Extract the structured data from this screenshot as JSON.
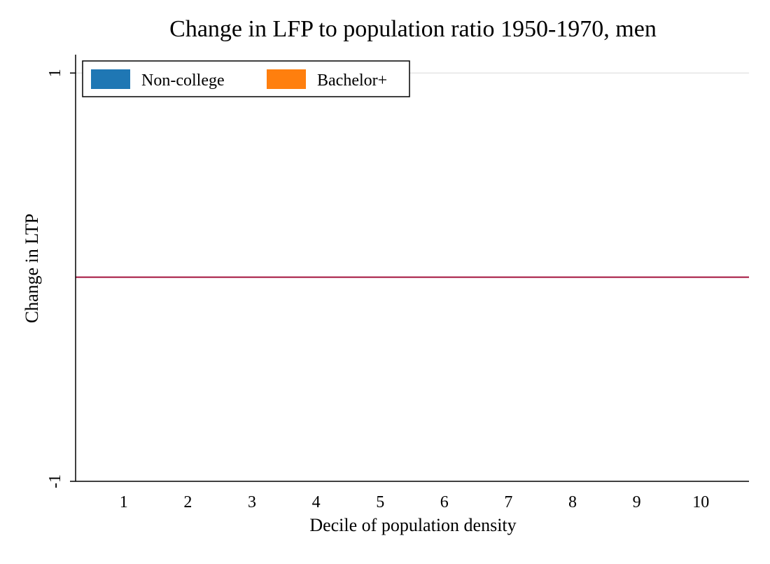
{
  "chart_data": {
    "type": "bar",
    "title": "Change in LFP to population ratio 1950-1970, men",
    "x_label": "Decile of population density",
    "y_label": "Change in LTP",
    "x": [
      1,
      2,
      3,
      4,
      5,
      6,
      7,
      8,
      9,
      10
    ],
    "series": [
      {
        "name": "Non-college",
        "color": "#1f77b4",
        "values": [
          0,
          0,
          0,
          0,
          0,
          0,
          0,
          0,
          0,
          0
        ]
      },
      {
        "name": "Bachelor+",
        "color": "#ff7f0e",
        "values": [
          0,
          0,
          0,
          0,
          0,
          0,
          0,
          0,
          0,
          0
        ]
      }
    ],
    "xlim": [
      0.25,
      10.75
    ],
    "xticks": [
      1,
      2,
      3,
      4,
      5,
      6,
      7,
      8,
      9,
      10
    ],
    "ylim": [
      -1,
      1.09
    ],
    "yticks": [
      -1,
      1
    ],
    "grid": true,
    "reference_line": {
      "value": 0,
      "color": "#a3123c"
    },
    "legend": "upper left"
  }
}
